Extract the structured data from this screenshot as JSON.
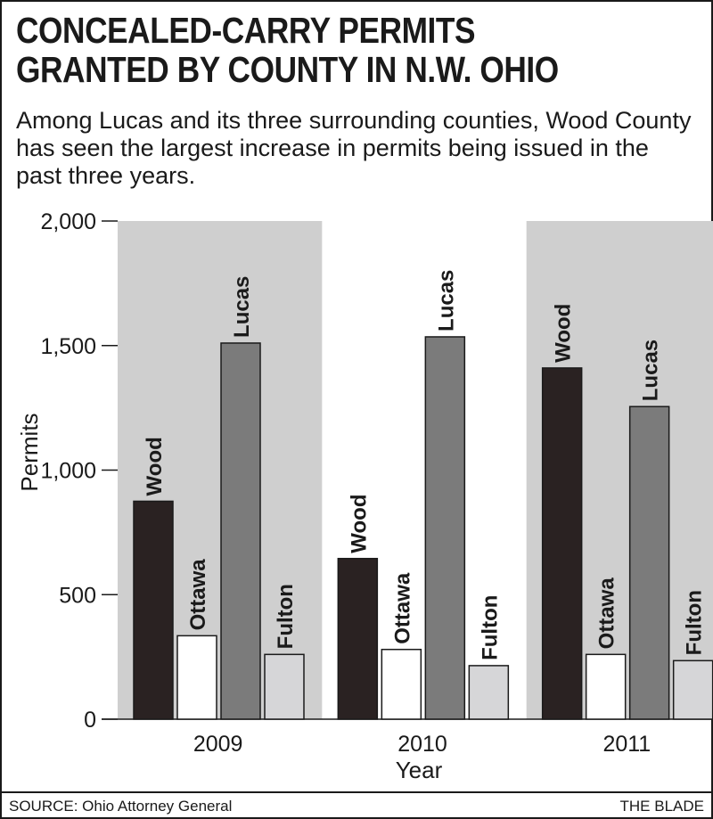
{
  "title": "CONCEALED-CARRY PERMITS\nGRANTED BY COUNTY IN N.W. OHIO",
  "subtitle": "Among Lucas and its three surrounding counties, Wood County has seen the largest increase in permits being issued in the past three years.",
  "source": "SOURCE: Ohio Attorney General",
  "credit": "THE BLADE",
  "colors": {
    "Wood": "#2a2222",
    "Ottawa": "#ffffff",
    "Lucas": "#7b7b7b",
    "Fulton": "#d6d6d8",
    "band": "#cfcfcf"
  },
  "chart_data": {
    "type": "bar",
    "xlabel": "Year",
    "ylabel": "Permits",
    "ylim": [
      0,
      2000
    ],
    "yticks": [
      0,
      500,
      1000,
      1500,
      2000
    ],
    "ytick_labels": [
      "0",
      "500",
      "1,000",
      "1,500",
      "2,000"
    ],
    "categories": [
      "2009",
      "2010",
      "2011"
    ],
    "shaded_categories": [
      "2009",
      "2011"
    ],
    "series": [
      {
        "name": "Wood",
        "values": [
          875,
          645,
          1410
        ]
      },
      {
        "name": "Ottawa",
        "values": [
          335,
          280,
          260
        ]
      },
      {
        "name": "Lucas",
        "values": [
          1510,
          1535,
          1255
        ]
      },
      {
        "name": "Fulton",
        "values": [
          260,
          215,
          235
        ]
      }
    ]
  }
}
